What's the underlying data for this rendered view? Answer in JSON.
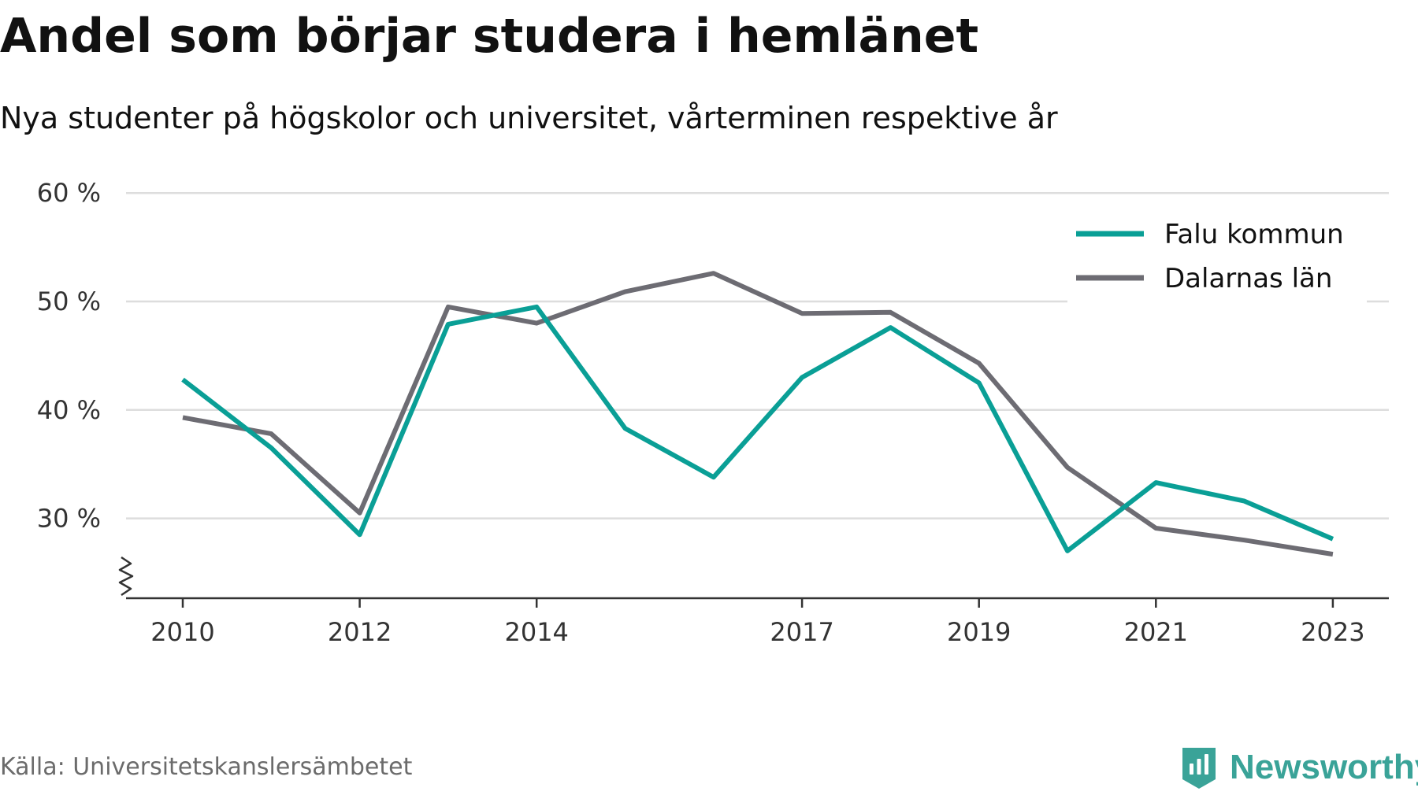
{
  "header": {
    "title": "Andel som börjar studera i hemlänet",
    "subtitle": "Nya studenter på högskolor och universitet, vårterminen respektive år"
  },
  "footer": {
    "source": "Källa: Universitetskanslersämbetet",
    "brand": "Newsworthy"
  },
  "colors": {
    "falu": "#0a9f96",
    "dalarna": "#6d6c73",
    "grid": "#dddddd",
    "axis": "#333333",
    "brand": "#3aa398"
  },
  "chart_data": {
    "type": "line",
    "title": "Andel som börjar studera i hemlänet",
    "subtitle": "Nya studenter på högskolor och universitet, vårterminen respektive år",
    "x": [
      2010,
      2011,
      2012,
      2013,
      2014,
      2015,
      2016,
      2017,
      2018,
      2019,
      2020,
      2021,
      2022,
      2023
    ],
    "x_ticks": [
      2010,
      2012,
      2014,
      2017,
      2019,
      2021,
      2023
    ],
    "y_ticks": [
      30,
      40,
      50,
      60
    ],
    "y_tick_labels": [
      "30 %",
      "40 %",
      "50 %",
      "60 %"
    ],
    "ylim": [
      23,
      60
    ],
    "y_axis_break": true,
    "grid": true,
    "legend_position": "top-right",
    "series": [
      {
        "name": "Falu kommun",
        "color": "#0a9f96",
        "values": [
          42.8,
          36.5,
          28.5,
          47.9,
          49.5,
          38.3,
          33.8,
          43.0,
          47.6,
          42.5,
          27.0,
          33.3,
          31.6,
          28.1
        ]
      },
      {
        "name": "Dalarnas län",
        "color": "#6d6c73",
        "values": [
          39.3,
          37.8,
          30.5,
          49.5,
          48.0,
          50.9,
          52.6,
          48.9,
          49.0,
          44.3,
          34.7,
          29.1,
          28.0,
          26.7
        ]
      }
    ]
  }
}
